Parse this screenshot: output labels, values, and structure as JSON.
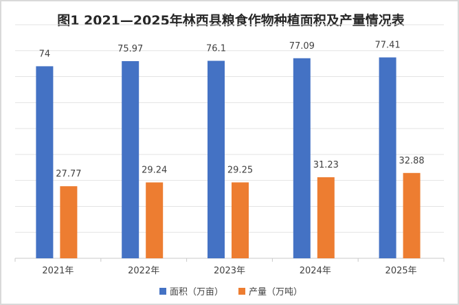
{
  "chart_data": {
    "type": "bar",
    "title": "图1 2021—2025年林西县粮食作物种植面积及产量情况表",
    "categories": [
      "2021年",
      "2022年",
      "2023年",
      "2024年",
      "2025年"
    ],
    "series": [
      {
        "name": "面积（万亩）",
        "color": "#4472C4",
        "values": [
          74,
          75.97,
          76.1,
          77.09,
          77.41
        ]
      },
      {
        "name": "产量（万吨）",
        "color": "#ED7D31",
        "values": [
          27.77,
          29.24,
          29.25,
          31.23,
          32.88
        ]
      }
    ],
    "value_labels": [
      [
        "74",
        "75.97",
        "76.1",
        "77.09",
        "77.41"
      ],
      [
        "27.77",
        "29.24",
        "29.25",
        "31.23",
        "32.88"
      ]
    ],
    "ylim": [
      0,
      90
    ],
    "grid": true,
    "legend_position": "bottom"
  }
}
